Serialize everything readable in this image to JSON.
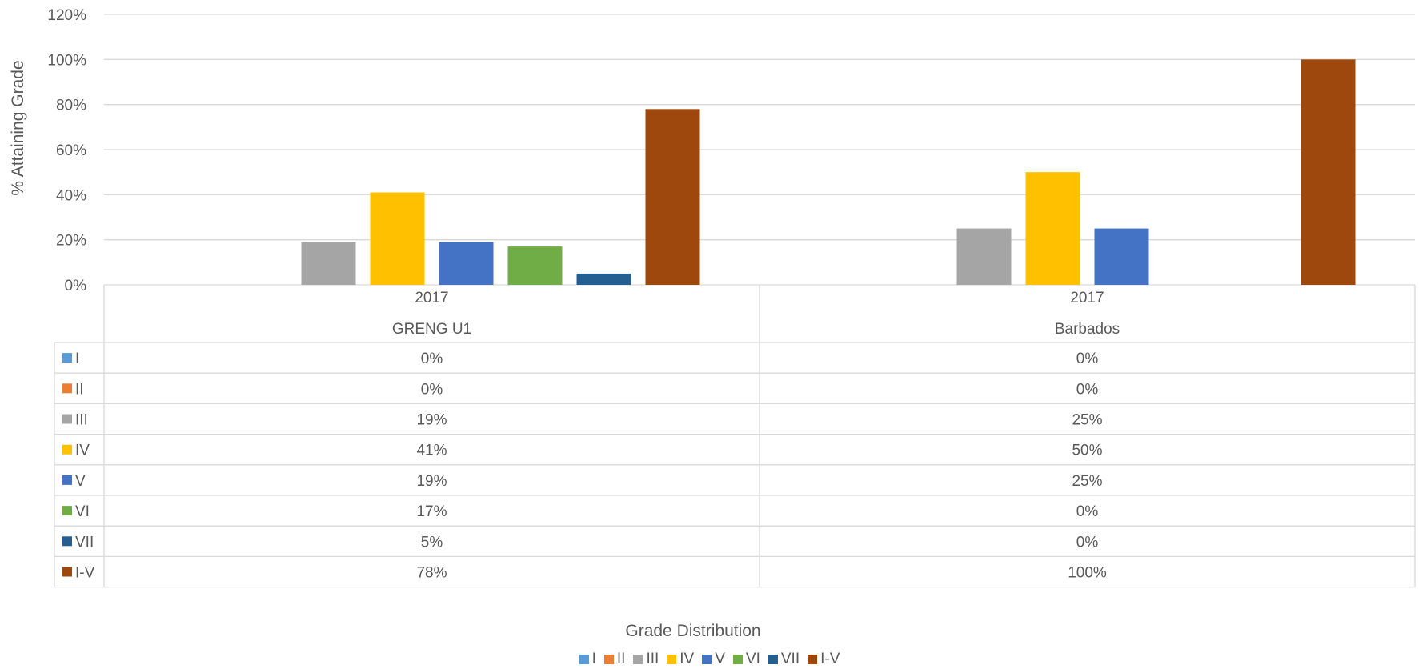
{
  "chart_data": {
    "type": "bar",
    "ylabel": "% Attaining Grade",
    "xlabel": "Grade Distribution",
    "ylim": [
      0,
      120
    ],
    "yticks": [
      "0%",
      "20%",
      "40%",
      "60%",
      "80%",
      "100%",
      "120%"
    ],
    "grid": true,
    "legend_position": "bottom",
    "categories": [
      {
        "year": "2017",
        "group": "GRENG U1"
      },
      {
        "year": "2017",
        "group": "Barbados"
      }
    ],
    "series": [
      {
        "name": "I",
        "color": "#5B9BD5",
        "values": [
          0,
          0
        ],
        "labels": [
          "0%",
          "0%"
        ]
      },
      {
        "name": "II",
        "color": "#ED7D31",
        "values": [
          0,
          0
        ],
        "labels": [
          "0%",
          "0%"
        ]
      },
      {
        "name": "III",
        "color": "#A5A5A5",
        "values": [
          19,
          25
        ],
        "labels": [
          "19%",
          "25%"
        ]
      },
      {
        "name": "IV",
        "color": "#FFC000",
        "values": [
          41,
          50
        ],
        "labels": [
          "41%",
          "50%"
        ]
      },
      {
        "name": "V",
        "color": "#4472C4",
        "values": [
          19,
          25
        ],
        "labels": [
          "19%",
          "25%"
        ]
      },
      {
        "name": "VI",
        "color": "#70AD47",
        "values": [
          17,
          0
        ],
        "labels": [
          "17%",
          "0%"
        ]
      },
      {
        "name": "VII",
        "color": "#255E91",
        "values": [
          5,
          0
        ],
        "labels": [
          "5%",
          "0%"
        ]
      },
      {
        "name": "I-V",
        "color": "#9E480E",
        "values": [
          78,
          100
        ],
        "labels": [
          "78%",
          "100%"
        ]
      }
    ]
  }
}
